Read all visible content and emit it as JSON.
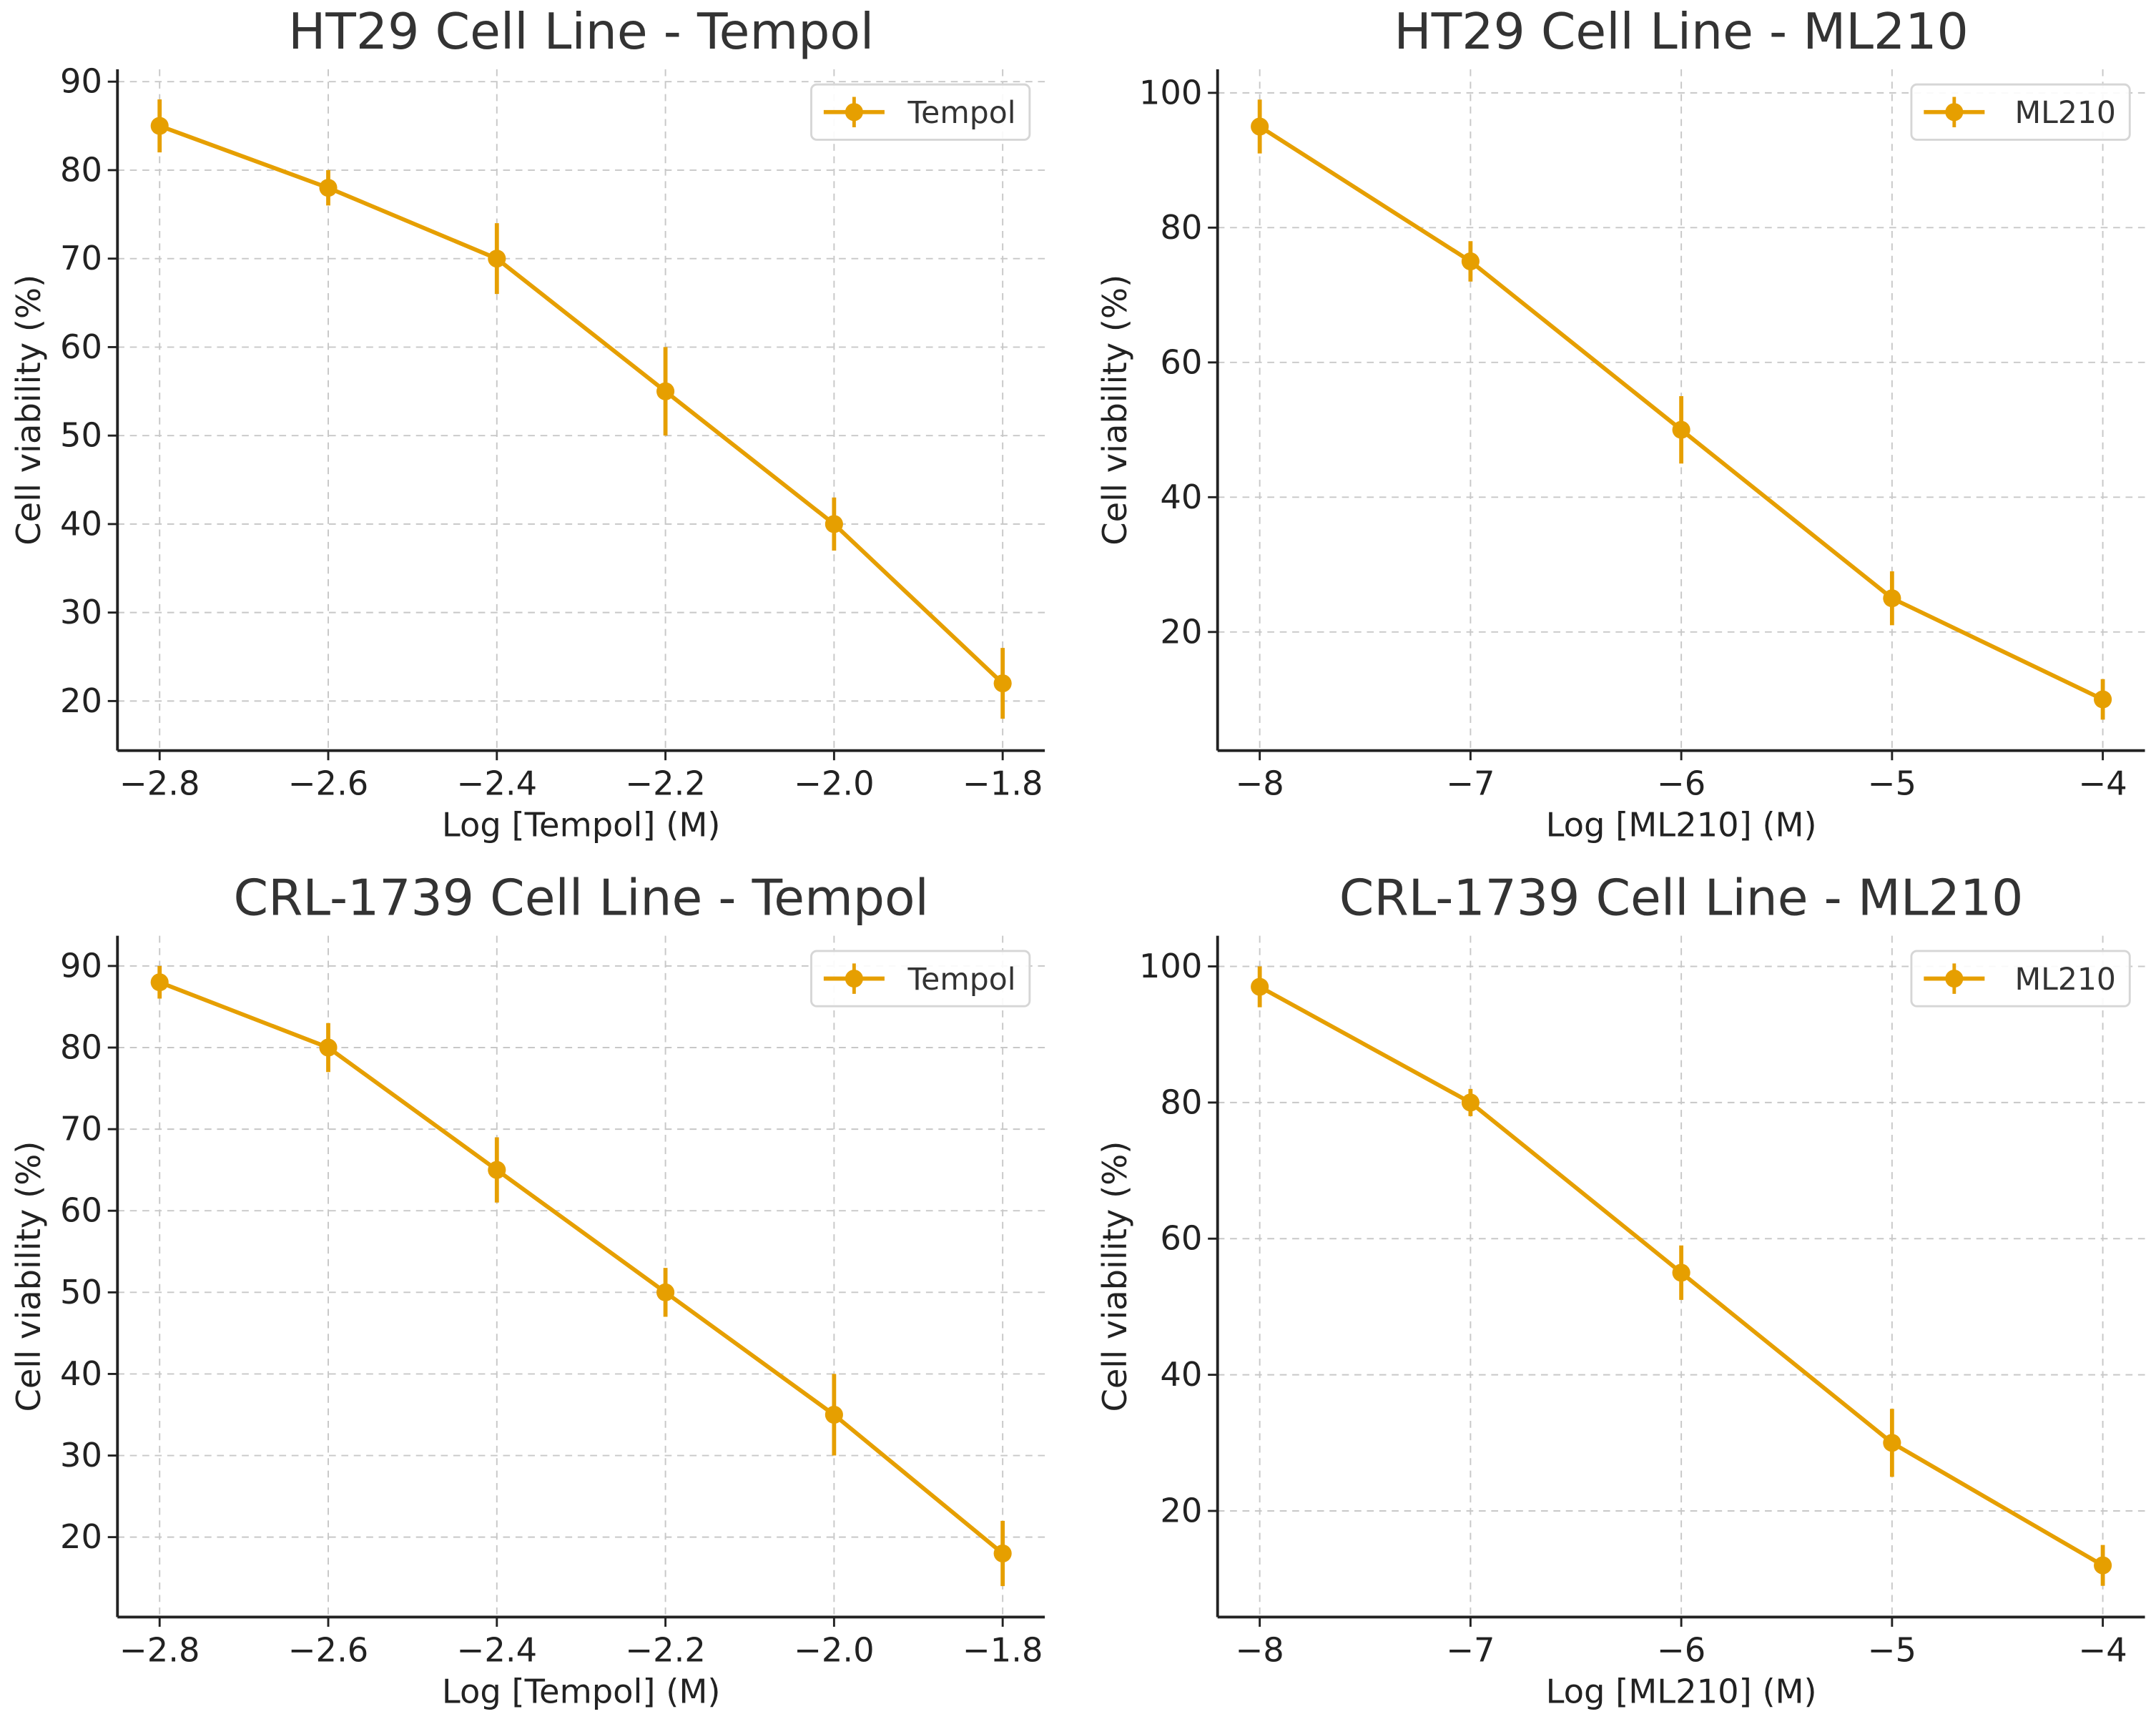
{
  "chart_data": [
    {
      "type": "line",
      "title": "HT29 Cell Line - Tempol",
      "xlabel": "Log [Tempol] (M)",
      "ylabel": "Cell viability (%)",
      "legend": {
        "label": "Tempol",
        "placement": "top-right"
      },
      "grid": true,
      "xlim": [
        -2.85,
        -1.75
      ],
      "ylim": [
        14.4,
        91.4
      ],
      "xticks": [
        -2.8,
        -2.6,
        -2.4,
        -2.2,
        -2.0,
        -1.8
      ],
      "xtick_labels": [
        "−2.8",
        "−2.6",
        "−2.4",
        "−2.2",
        "−2.0",
        "−1.8"
      ],
      "yticks": [
        20,
        30,
        40,
        50,
        60,
        70,
        80,
        90
      ],
      "ytick_labels": [
        "20",
        "30",
        "40",
        "50",
        "60",
        "70",
        "80",
        "90"
      ],
      "x": [
        -2.8,
        -2.6,
        -2.4,
        -2.2,
        -2.0,
        -1.8
      ],
      "y": [
        85,
        78,
        70,
        55,
        40,
        22
      ],
      "yerr": [
        3,
        2,
        4,
        5,
        3,
        4
      ],
      "color": "#E69F00"
    },
    {
      "type": "line",
      "title": "HT29 Cell Line - ML210",
      "xlabel": "Log [ML210] (M)",
      "ylabel": "Cell viability (%)",
      "legend": {
        "label": "ML210",
        "placement": "top-right"
      },
      "grid": true,
      "xlim": [
        -8.2,
        -3.8
      ],
      "ylim": [
        2.4,
        103.5
      ],
      "xticks": [
        -8,
        -7,
        -6,
        -5,
        -4
      ],
      "xtick_labels": [
        "−8",
        "−7",
        "−6",
        "−5",
        "−4"
      ],
      "yticks": [
        20,
        40,
        60,
        80,
        100
      ],
      "ytick_labels": [
        "20",
        "40",
        "60",
        "80",
        "100"
      ],
      "x": [
        -8,
        -7,
        -6,
        -5,
        -4
      ],
      "y": [
        95,
        75,
        50,
        25,
        10
      ],
      "yerr": [
        4,
        3,
        5,
        4,
        3
      ],
      "color": "#E69F00"
    },
    {
      "type": "line",
      "title": "CRL-1739 Cell Line - Tempol",
      "xlabel": "Log [Tempol] (M)",
      "ylabel": "Cell viability (%)",
      "legend": {
        "label": "Tempol",
        "placement": "top-right"
      },
      "grid": true,
      "xlim": [
        -2.85,
        -1.75
      ],
      "ylim": [
        10.2,
        93.7
      ],
      "xticks": [
        -2.8,
        -2.6,
        -2.4,
        -2.2,
        -2.0,
        -1.8
      ],
      "xtick_labels": [
        "−2.8",
        "−2.6",
        "−2.4",
        "−2.2",
        "−2.0",
        "−1.8"
      ],
      "yticks": [
        20,
        30,
        40,
        50,
        60,
        70,
        80,
        90
      ],
      "ytick_labels": [
        "20",
        "30",
        "40",
        "50",
        "60",
        "70",
        "80",
        "90"
      ],
      "x": [
        -2.8,
        -2.6,
        -2.4,
        -2.2,
        -2.0,
        -1.8
      ],
      "y": [
        88,
        80,
        65,
        50,
        35,
        18
      ],
      "yerr": [
        2,
        3,
        4,
        3,
        5,
        4
      ],
      "color": "#E69F00"
    },
    {
      "type": "line",
      "title": "CRL-1739 Cell Line - ML210",
      "xlabel": "Log [ML210] (M)",
      "ylabel": "Cell viability (%)",
      "legend": {
        "label": "ML210",
        "placement": "top-right"
      },
      "grid": true,
      "xlim": [
        -8.2,
        -3.8
      ],
      "ylim": [
        4.4,
        104.5
      ],
      "xticks": [
        -8,
        -7,
        -6,
        -5,
        -4
      ],
      "xtick_labels": [
        "−8",
        "−7",
        "−6",
        "−5",
        "−4"
      ],
      "yticks": [
        20,
        40,
        60,
        80,
        100
      ],
      "ytick_labels": [
        "20",
        "40",
        "60",
        "80",
        "100"
      ],
      "x": [
        -8,
        -7,
        -6,
        -5,
        -4
      ],
      "y": [
        97,
        80,
        55,
        30,
        12
      ],
      "yerr": [
        3,
        2,
        4,
        5,
        3
      ],
      "color": "#E69F00"
    }
  ]
}
